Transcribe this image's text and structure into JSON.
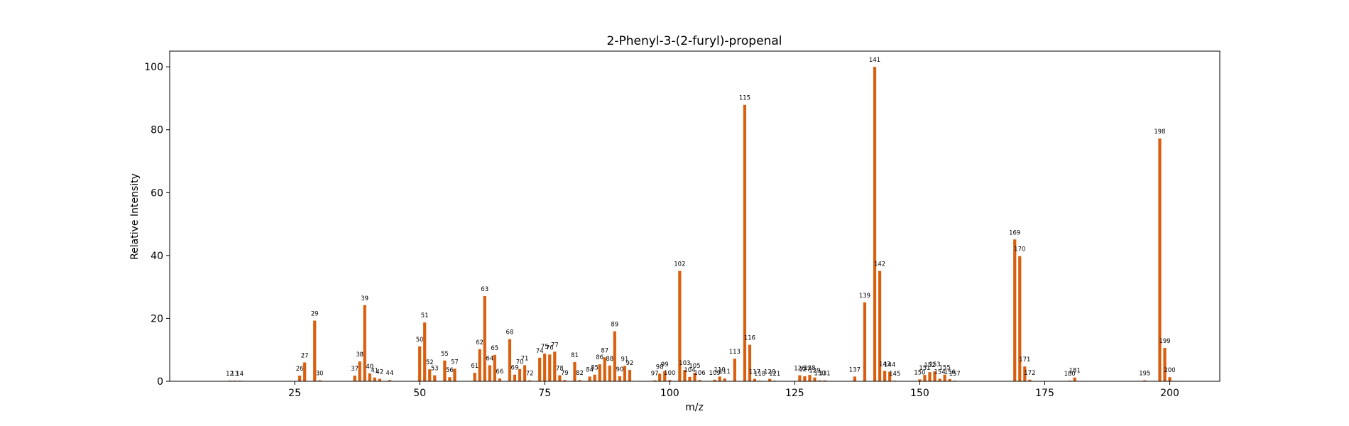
{
  "chart_data": {
    "type": "bar",
    "title": "2-Phenyl-3-(2-furyl)-propenal",
    "xlabel": "m/z",
    "ylabel": "Relative Intensity",
    "xlim": [
      0,
      210
    ],
    "ylim": [
      0,
      105
    ],
    "xticks": [
      25,
      50,
      75,
      100,
      125,
      150,
      175,
      200
    ],
    "yticks": [
      0,
      20,
      40,
      60,
      80,
      100
    ],
    "grid": false,
    "bar_color": "#d95f0e",
    "x": [
      12,
      13,
      14,
      26,
      27,
      29,
      30,
      37,
      38,
      39,
      40,
      41,
      42,
      44,
      50,
      51,
      52,
      53,
      55,
      56,
      57,
      61,
      62,
      63,
      64,
      65,
      66,
      68,
      69,
      70,
      71,
      72,
      74,
      75,
      76,
      77,
      78,
      79,
      81,
      82,
      84,
      85,
      86,
      87,
      88,
      89,
      90,
      91,
      92,
      97,
      98,
      99,
      100,
      102,
      103,
      104,
      105,
      106,
      109,
      110,
      111,
      113,
      115,
      116,
      117,
      118,
      120,
      121,
      126,
      127,
      128,
      129,
      130,
      131,
      137,
      139,
      141,
      142,
      143,
      144,
      145,
      150,
      151,
      152,
      153,
      154,
      155,
      156,
      157,
      169,
      170,
      171,
      172,
      180,
      181,
      195,
      198,
      199,
      200
    ],
    "values": [
      0.2,
      0.2,
      0.2,
      1.8,
      6.0,
      19.3,
      0.3,
      1.8,
      6.3,
      24.2,
      2.5,
      1.2,
      0.8,
      0.4,
      11.1,
      18.7,
      3.8,
      1.9,
      6.6,
      1.3,
      4.0,
      2.7,
      10.2,
      27.1,
      5.1,
      8.4,
      0.9,
      13.4,
      2.1,
      3.9,
      5.1,
      0.3,
      7.5,
      8.8,
      8.5,
      9.4,
      1.9,
      0.4,
      6.1,
      0.4,
      1.5,
      2.1,
      5.4,
      7.6,
      5.0,
      15.9,
      1.6,
      4.9,
      3.6,
      0.3,
      2.4,
      3.2,
      0.4,
      35.1,
      3.6,
      1.4,
      2.7,
      0.4,
      0.5,
      1.5,
      0.9,
      7.2,
      87.9,
      11.6,
      0.8,
      0.2,
      0.8,
      0.2,
      1.9,
      1.6,
      2.0,
      1.2,
      0.3,
      0.3,
      1.5,
      25.1,
      100.0,
      35.1,
      3.3,
      3.0,
      0.2,
      0.6,
      2.0,
      2.9,
      3.2,
      0.8,
      2.1,
      0.7,
      0.2,
      45.1,
      39.8,
      4.7,
      0.5,
      0.2,
      1.2,
      0.3,
      77.2,
      10.6,
      1.3
    ]
  }
}
